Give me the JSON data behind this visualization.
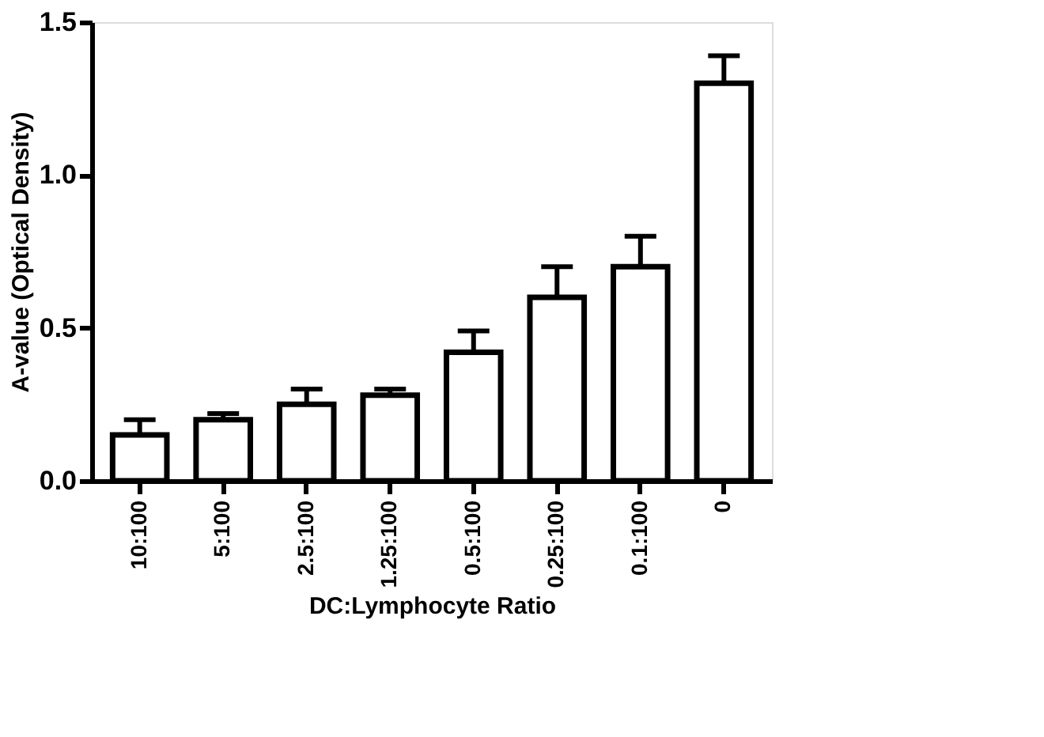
{
  "chart_data": {
    "type": "bar",
    "xlabel": "DC:Lymphocyte Ratio",
    "ylabel": "A-value (Optical Density)",
    "categories": [
      "10:100",
      "5:100",
      "2.5:100",
      "1.25:100",
      "0.5:100",
      "0.25:100",
      "0.1:100",
      "0"
    ],
    "values": [
      0.15,
      0.2,
      0.25,
      0.28,
      0.42,
      0.6,
      0.7,
      1.3
    ],
    "errors": [
      [
        0.15,
        0.2
      ],
      [
        0.2,
        0.22
      ],
      [
        0.25,
        0.3
      ],
      [
        0.28,
        0.3
      ],
      [
        0.42,
        0.49
      ],
      [
        0.6,
        0.7
      ],
      [
        0.7,
        0.8
      ],
      [
        1.3,
        1.39
      ]
    ],
    "color": "#ffffff",
    "ylim": [
      0,
      1.5
    ],
    "yticks": [
      {
        "value": 0,
        "label": "0.0"
      },
      {
        "value": 0.5,
        "label": "0.5"
      },
      {
        "value": 1.0,
        "label": "1.0"
      },
      {
        "value": 1.5,
        "label": "1.5"
      }
    ],
    "grid": false
  }
}
